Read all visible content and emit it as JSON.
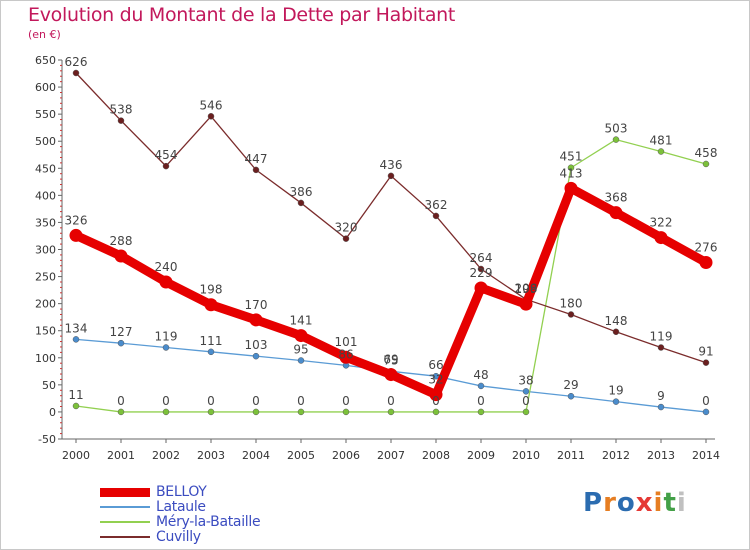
{
  "header": {
    "title": "Evolution du Montant de la Dette par Habitant",
    "unit": "(en €)"
  },
  "logo": {
    "letters": [
      "P",
      "r",
      "o",
      "x",
      "i",
      "t",
      "i"
    ],
    "colors": [
      "#2b6cb0",
      "#e67e22",
      "#2b6cb0",
      "#e53935",
      "#e67e22",
      "#43a047",
      "#c0c0c0"
    ]
  },
  "chart_data": {
    "type": "line",
    "categories": [
      "2000",
      "2001",
      "2002",
      "2003",
      "2004",
      "2005",
      "2006",
      "2007",
      "2008",
      "2009",
      "2010",
      "2011",
      "2012",
      "2013",
      "2014"
    ],
    "yticks": [
      -50,
      0,
      50,
      100,
      150,
      200,
      250,
      300,
      350,
      400,
      450,
      500,
      550,
      600,
      650
    ],
    "ylim": [
      -50,
      650
    ],
    "grid": false,
    "legend_position": "bottom-left",
    "series": [
      {
        "name": "BELLOY",
        "color": "#e60000",
        "values": [
          326,
          288,
          240,
          198,
          170,
          141,
          101,
          69,
          32,
          229,
          199,
          413,
          368,
          322,
          276
        ],
        "labels": [
          "326",
          "288",
          "240",
          "198",
          "170",
          "141",
          "101",
          "69",
          "32",
          "229",
          "199",
          "413",
          "368",
          "322",
          "276"
        ]
      },
      {
        "name": "Lataule",
        "color": "#5a9bd5",
        "values": [
          134,
          127,
          119,
          111,
          103,
          95,
          86,
          75,
          66,
          48,
          38,
          29,
          19,
          9,
          0
        ],
        "labels": [
          "134",
          "127",
          "119",
          "111",
          "103",
          "95",
          "86",
          "75",
          "66",
          "48",
          "38",
          "29",
          "19",
          "9",
          "0"
        ]
      },
      {
        "name": "Méry-la-Bataille",
        "color": "#92d050",
        "values": [
          11,
          0,
          0,
          0,
          0,
          0,
          0,
          0,
          0,
          0,
          0,
          451,
          503,
          481,
          458
        ],
        "labels": [
          "11",
          "0",
          "0",
          "0",
          "0",
          "0",
          "0",
          "0",
          "0",
          "0",
          "0",
          "451",
          "503",
          "481",
          "458"
        ]
      },
      {
        "name": "Cuvilly",
        "color": "#7b2c2c",
        "values": [
          626,
          538,
          454,
          546,
          447,
          386,
          320,
          436,
          362,
          264,
          208,
          180,
          148,
          119,
          91
        ],
        "labels": [
          "626",
          "538",
          "454",
          "546",
          "447",
          "386",
          "320",
          "436",
          "362",
          "264",
          "208",
          "180",
          "148",
          "119",
          "91"
        ]
      }
    ]
  }
}
